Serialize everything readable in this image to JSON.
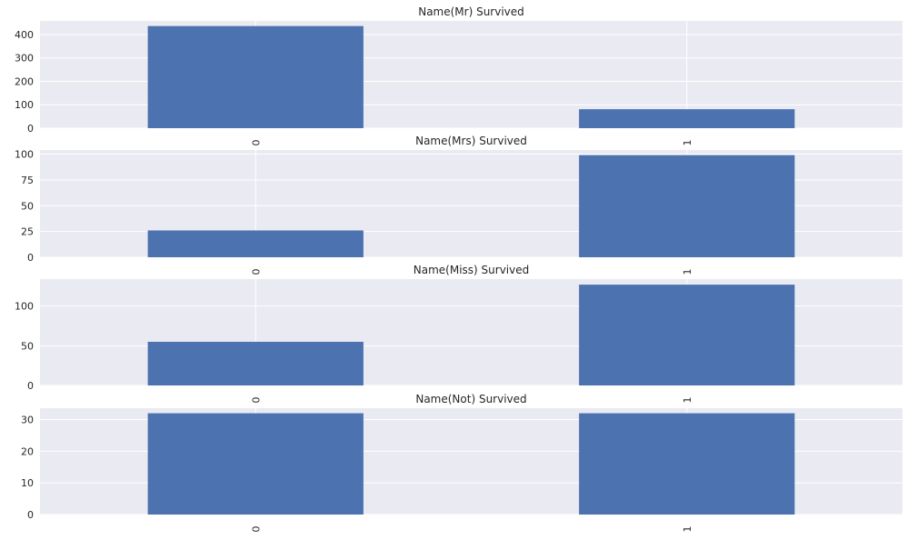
{
  "colors": {
    "bar": "#4c72b0",
    "plot_background": "#eaeaf2",
    "grid": "#ffffff",
    "text": "#262626"
  },
  "chart_data": [
    {
      "type": "bar",
      "title": "Name(Mr) Survived",
      "xlabel": "",
      "ylabel": "",
      "categories": [
        "0",
        "1"
      ],
      "values": [
        436,
        81
      ],
      "ylim": [
        0,
        458
      ],
      "yticks": [
        0,
        100,
        200,
        300,
        400
      ],
      "grid": true,
      "legend": "none"
    },
    {
      "type": "bar",
      "title": "Name(Mrs) Survived",
      "xlabel": "",
      "ylabel": "",
      "categories": [
        "0",
        "1"
      ],
      "values": [
        26,
        99
      ],
      "ylim": [
        0,
        104
      ],
      "yticks": [
        0,
        25,
        50,
        75,
        100
      ],
      "grid": true,
      "legend": "none"
    },
    {
      "type": "bar",
      "title": "Name(Miss) Survived",
      "xlabel": "",
      "ylabel": "",
      "categories": [
        "0",
        "1"
      ],
      "values": [
        55,
        127
      ],
      "ylim": [
        0,
        134
      ],
      "yticks": [
        0,
        50,
        100
      ],
      "grid": true,
      "legend": "none"
    },
    {
      "type": "bar",
      "title": "Name(Not) Survived",
      "xlabel": "",
      "ylabel": "",
      "categories": [
        "0",
        "1"
      ],
      "values": [
        32,
        32
      ],
      "ylim": [
        0,
        33.6
      ],
      "yticks": [
        0,
        10,
        20,
        30
      ],
      "grid": true,
      "legend": "none"
    }
  ]
}
